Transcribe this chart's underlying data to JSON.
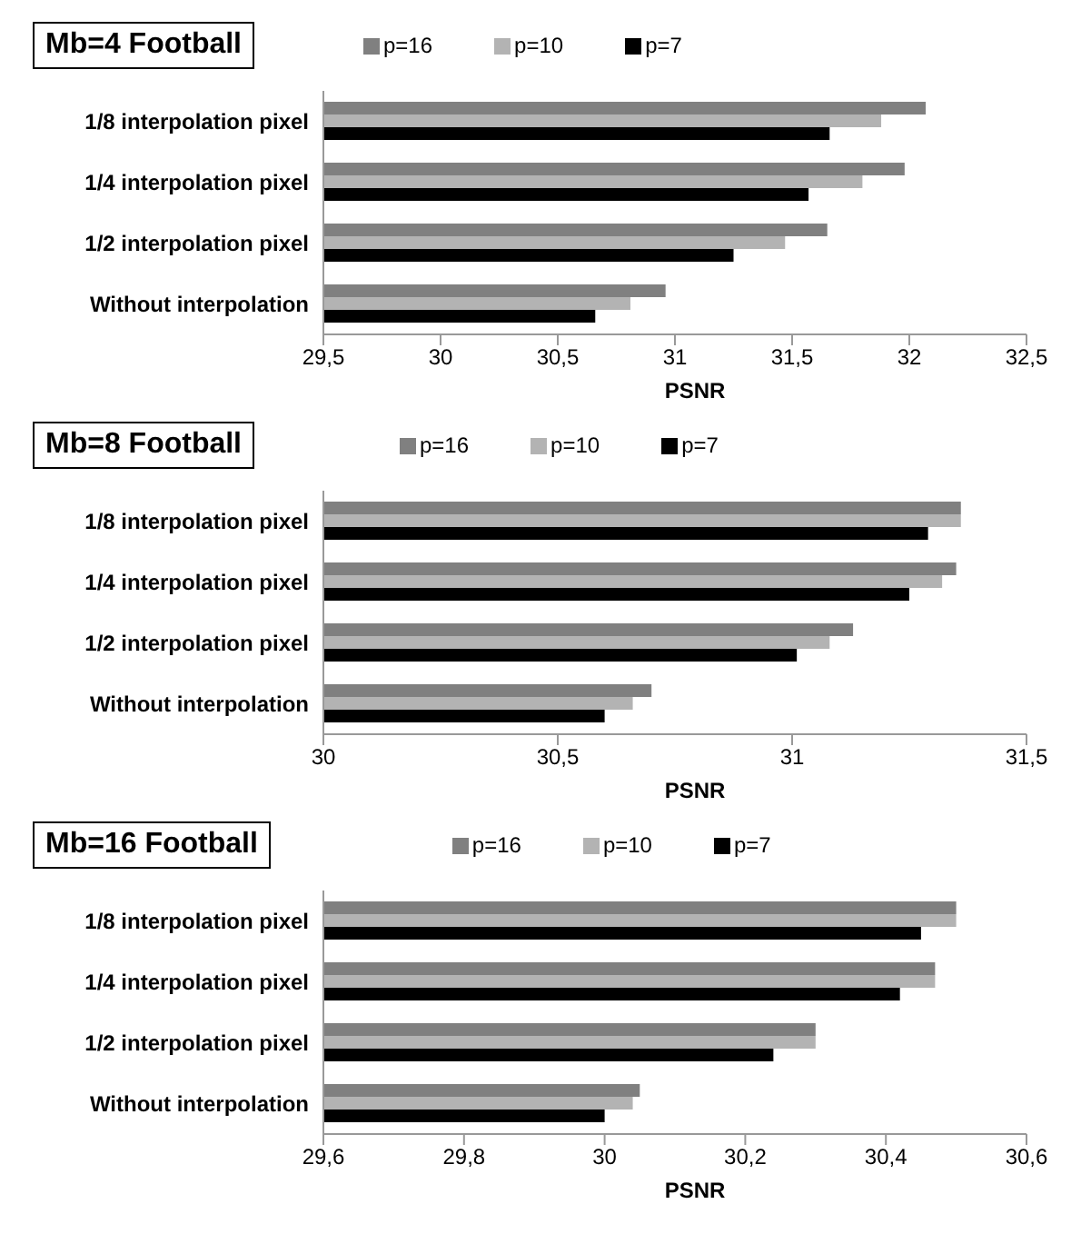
{
  "chart_data": [
    {
      "type": "bar",
      "orientation": "horizontal",
      "title": "Mb=4 Football",
      "xlabel": "PSNR",
      "categories": [
        "1/8  interpolation pixel",
        "1/4  interpolation pixel",
        "1/2 interpolation pixel",
        "Without interpolation"
      ],
      "series": [
        {
          "name": "p=16",
          "color": "#808080",
          "values": [
            32.07,
            31.98,
            31.65,
            30.96
          ]
        },
        {
          "name": "p=10",
          "color": "#b3b3b3",
          "values": [
            31.88,
            31.8,
            31.47,
            30.81
          ]
        },
        {
          "name": "p=7",
          "color": "#000000",
          "values": [
            31.66,
            31.57,
            31.25,
            30.66
          ]
        }
      ],
      "xlim": [
        29.5,
        32.5
      ],
      "xticks": [
        {
          "value": 29.5,
          "label": "29,5"
        },
        30,
        {
          "value": 30.5,
          "label": "30,5"
        },
        31,
        {
          "value": 31.5,
          "label": "31,5"
        },
        32,
        {
          "value": 32.5,
          "label": "32,5"
        }
      ],
      "grid": false,
      "legend": "top"
    },
    {
      "type": "bar",
      "orientation": "horizontal",
      "title": "Mb=8 Football",
      "xlabel": "PSNR",
      "categories": [
        "1/8  interpolation pixel",
        "1/4  interpolation pixel",
        "1/2 interpolation pixel",
        "Without interpolation"
      ],
      "series": [
        {
          "name": "p=16",
          "color": "#808080",
          "values": [
            31.36,
            31.35,
            31.13,
            30.7
          ]
        },
        {
          "name": "p=10",
          "color": "#b3b3b3",
          "values": [
            31.36,
            31.32,
            31.08,
            30.66
          ]
        },
        {
          "name": "p=7",
          "color": "#000000",
          "values": [
            31.29,
            31.25,
            31.01,
            30.6
          ]
        }
      ],
      "xlim": [
        30,
        31.5
      ],
      "xticks": [
        30,
        {
          "value": 30.5,
          "label": "30,5"
        },
        31,
        {
          "value": 31.5,
          "label": "31,5"
        }
      ],
      "grid": false,
      "legend": "top"
    },
    {
      "type": "bar",
      "orientation": "horizontal",
      "title": "Mb=16 Football",
      "xlabel": "PSNR",
      "categories": [
        "1/8  interpolation pixel",
        "1/4  interpolation pixel",
        "1/2 interpolation pixel",
        "Without interpolation"
      ],
      "series": [
        {
          "name": "p=16",
          "color": "#808080",
          "values": [
            30.5,
            30.47,
            30.3,
            30.05
          ]
        },
        {
          "name": "p=10",
          "color": "#b3b3b3",
          "values": [
            30.5,
            30.47,
            30.3,
            30.04
          ]
        },
        {
          "name": "p=7",
          "color": "#000000",
          "values": [
            30.45,
            30.42,
            30.24,
            30.0
          ]
        }
      ],
      "xlim": [
        29.6,
        30.6
      ],
      "xticks": [
        {
          "value": 29.6,
          "label": "29,6"
        },
        {
          "value": 29.8,
          "label": "29,8"
        },
        30,
        {
          "value": 30.2,
          "label": "30,2"
        },
        {
          "value": 30.4,
          "label": "30,4"
        },
        {
          "value": 30.6,
          "label": "30,6"
        }
      ],
      "grid": false,
      "legend": "top"
    }
  ]
}
